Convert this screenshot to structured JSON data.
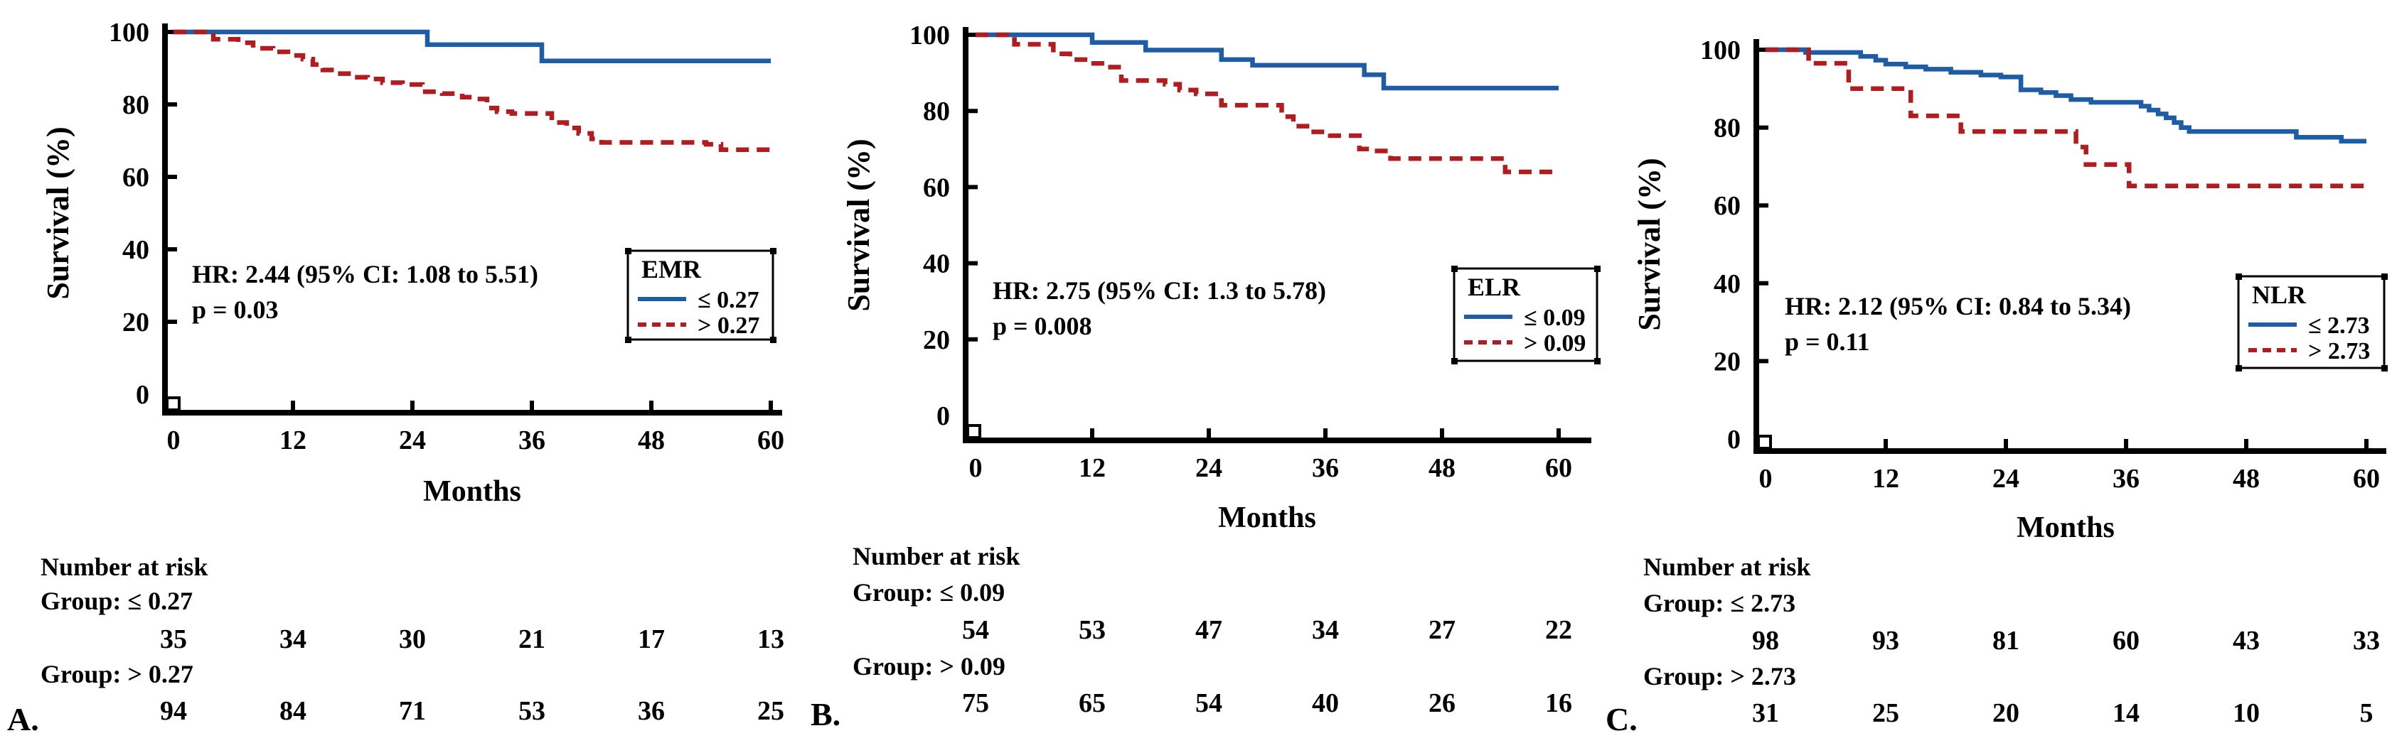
{
  "figure": {
    "ylabel": "Survival (%)",
    "xlabel": "Months",
    "risk_heading": "Number at risk"
  },
  "colors": {
    "blue_curve": "#1e5ca6",
    "red_curve": "#b01c20",
    "blue_text": "#2d2bbd",
    "axis": "#000000"
  },
  "chart_data": [
    {
      "type": "line",
      "panel_label": "A.",
      "title": "EMR",
      "xlabel": "Months",
      "ylabel": "Survival (%)",
      "xlim": [
        0,
        60
      ],
      "ylim": [
        0,
        100
      ],
      "xticks": [
        0,
        12,
        24,
        36,
        48,
        60
      ],
      "yticks": [
        100,
        80,
        60,
        40,
        20,
        0
      ],
      "grid": false,
      "legend_position": "right-middle",
      "annotation": {
        "hr": "HR: 2.44 (95% CI: 1.08 to 5.51)",
        "p": "p = 0.03"
      },
      "legend": {
        "title": "EMR",
        "items": [
          {
            "label": "≤ 0.27",
            "color": "#1e5ca6",
            "style": "solid"
          },
          {
            "label": "> 0.27",
            "color": "#b01c20",
            "style": "dashed"
          }
        ]
      },
      "series": [
        {
          "name": "≤ 0.27",
          "color": "#1e5ca6",
          "dash": false,
          "steps": [
            [
              0,
              100
            ],
            [
              25.5,
              96.5
            ],
            [
              37,
              92
            ]
          ]
        },
        {
          "name": "> 0.27",
          "color": "#b01c20",
          "dash": true,
          "steps": [
            [
              0,
              100
            ],
            [
              4,
              98
            ],
            [
              6.5,
              97
            ],
            [
              8,
              95.5
            ],
            [
              10,
              94.5
            ],
            [
              11.5,
              93.5
            ],
            [
              13,
              92.5
            ],
            [
              14,
              91
            ],
            [
              15,
              89.5
            ],
            [
              16.5,
              88.5
            ],
            [
              18,
              87.5
            ],
            [
              19.5,
              87
            ],
            [
              21,
              86
            ],
            [
              23,
              85.5
            ],
            [
              25,
              83.5
            ],
            [
              27,
              83
            ],
            [
              29,
              82
            ],
            [
              30.5,
              81.5
            ],
            [
              31.5,
              79
            ],
            [
              32.5,
              78
            ],
            [
              34,
              77.5
            ],
            [
              38,
              75
            ],
            [
              39.5,
              73.5
            ],
            [
              40.7,
              72
            ],
            [
              42,
              70.5
            ],
            [
              43,
              69.5
            ],
            [
              53.5,
              69
            ],
            [
              55,
              67.5
            ]
          ]
        }
      ],
      "risk_table": {
        "heading": "Number at risk",
        "groups": [
          {
            "label": "Group: ≤ 0.27",
            "counts": [
              35,
              34,
              30,
              21,
              17,
              13
            ]
          },
          {
            "label": "Group: > 0.27",
            "counts": [
              94,
              84,
              71,
              53,
              36,
              25
            ]
          }
        ]
      }
    },
    {
      "type": "line",
      "panel_label": "B.",
      "title": "ELR",
      "xlabel": "Months",
      "ylabel": "Survival (%)",
      "xlim": [
        0,
        60
      ],
      "ylim": [
        0,
        100
      ],
      "xticks": [
        0,
        12,
        24,
        36,
        48,
        60
      ],
      "yticks": [
        100,
        80,
        60,
        40,
        20,
        0
      ],
      "grid": false,
      "legend_position": "right-middle",
      "annotation": {
        "hr": "HR: 2.75 (95% CI: 1.3 to 5.78)",
        "p": "p = 0.008"
      },
      "legend": {
        "title": "ELR",
        "items": [
          {
            "label": "≤ 0.09",
            "color": "#1e5ca6",
            "style": "solid"
          },
          {
            "label": "> 0.09",
            "color": "#b01c20",
            "style": "dashed"
          }
        ]
      },
      "series": [
        {
          "name": "≤ 0.09",
          "color": "#1e5ca6",
          "dash": false,
          "steps": [
            [
              0,
              100
            ],
            [
              12,
              98
            ],
            [
              17.5,
              96
            ],
            [
              25.3,
              93.5
            ],
            [
              28.5,
              92
            ],
            [
              40,
              89.5
            ],
            [
              42,
              86
            ]
          ]
        },
        {
          "name": "> 0.09",
          "color": "#b01c20",
          "dash": true,
          "steps": [
            [
              0,
              100
            ],
            [
              4,
              97.5
            ],
            [
              8,
              95
            ],
            [
              9.7,
              93.5
            ],
            [
              11.5,
              92.5
            ],
            [
              13,
              91.5
            ],
            [
              15,
              88
            ],
            [
              19.5,
              87
            ],
            [
              21,
              85.5
            ],
            [
              22.7,
              84.5
            ],
            [
              25.3,
              81.5
            ],
            [
              31.5,
              78.5
            ],
            [
              32.7,
              76
            ],
            [
              34.5,
              74.5
            ],
            [
              36.5,
              73.5
            ],
            [
              39.5,
              70
            ],
            [
              41,
              69.5
            ],
            [
              42.7,
              67.5
            ],
            [
              54.5,
              64
            ]
          ]
        }
      ],
      "risk_table": {
        "heading": "Number at risk",
        "groups": [
          {
            "label": "Group: ≤ 0.09",
            "counts": [
              54,
              53,
              47,
              34,
              27,
              22
            ]
          },
          {
            "label": "Group: > 0.09",
            "counts": [
              75,
              65,
              54,
              40,
              26,
              16
            ]
          }
        ]
      }
    },
    {
      "type": "line",
      "panel_label": "C.",
      "title": "NLR",
      "xlabel": "Months",
      "ylabel": "Survival (%)",
      "xlim": [
        0,
        60
      ],
      "ylim": [
        0,
        100
      ],
      "xticks": [
        0,
        12,
        24,
        36,
        48,
        60
      ],
      "yticks": [
        100,
        80,
        60,
        40,
        20,
        0
      ],
      "grid": false,
      "legend_position": "right-middle",
      "annotation": {
        "hr": "HR: 2.12 (95% CI: 0.84 to 5.34)",
        "p": "p = 0.11"
      },
      "legend": {
        "title": "NLR",
        "items": [
          {
            "label": "≤ 2.73",
            "color": "#1e5ca6",
            "style": "solid"
          },
          {
            "label": "> 2.73",
            "color": "#b01c20",
            "style": "dashed"
          }
        ]
      },
      "series": [
        {
          "name": "≤ 2.73",
          "color": "#1e5ca6",
          "dash": false,
          "steps": [
            [
              0,
              100
            ],
            [
              4,
              99.3
            ],
            [
              9.5,
              98.3
            ],
            [
              11,
              97.3
            ],
            [
              12,
              96.3
            ],
            [
              14,
              95.6
            ],
            [
              16,
              95
            ],
            [
              18.5,
              94.2
            ],
            [
              21.5,
              93.5
            ],
            [
              23.5,
              93
            ],
            [
              25.5,
              89.7
            ],
            [
              27.5,
              89
            ],
            [
              29,
              88.2
            ],
            [
              30.5,
              87.2
            ],
            [
              32.5,
              86.5
            ],
            [
              37.5,
              85.5
            ],
            [
              38.3,
              84.5
            ],
            [
              39.2,
              83.5
            ],
            [
              40,
              82.5
            ],
            [
              40.8,
              81.3
            ],
            [
              41.5,
              80
            ],
            [
              42.3,
              79
            ],
            [
              53,
              77.5
            ],
            [
              57.5,
              76.5
            ]
          ]
        },
        {
          "name": "> 2.73",
          "color": "#b01c20",
          "dash": true,
          "steps": [
            [
              0,
              100
            ],
            [
              4.3,
              96.5
            ],
            [
              8.3,
              90
            ],
            [
              14.5,
              83
            ],
            [
              19.5,
              79
            ],
            [
              31,
              75
            ],
            [
              32,
              70.5
            ],
            [
              36.3,
              65
            ]
          ]
        }
      ],
      "risk_table": {
        "heading": "Number at risk",
        "groups": [
          {
            "label": "Group: ≤ 2.73",
            "counts": [
              98,
              93,
              81,
              60,
              43,
              33
            ]
          },
          {
            "label": "Group: > 2.73",
            "counts": [
              31,
              25,
              20,
              14,
              10,
              5
            ]
          }
        ]
      }
    }
  ]
}
